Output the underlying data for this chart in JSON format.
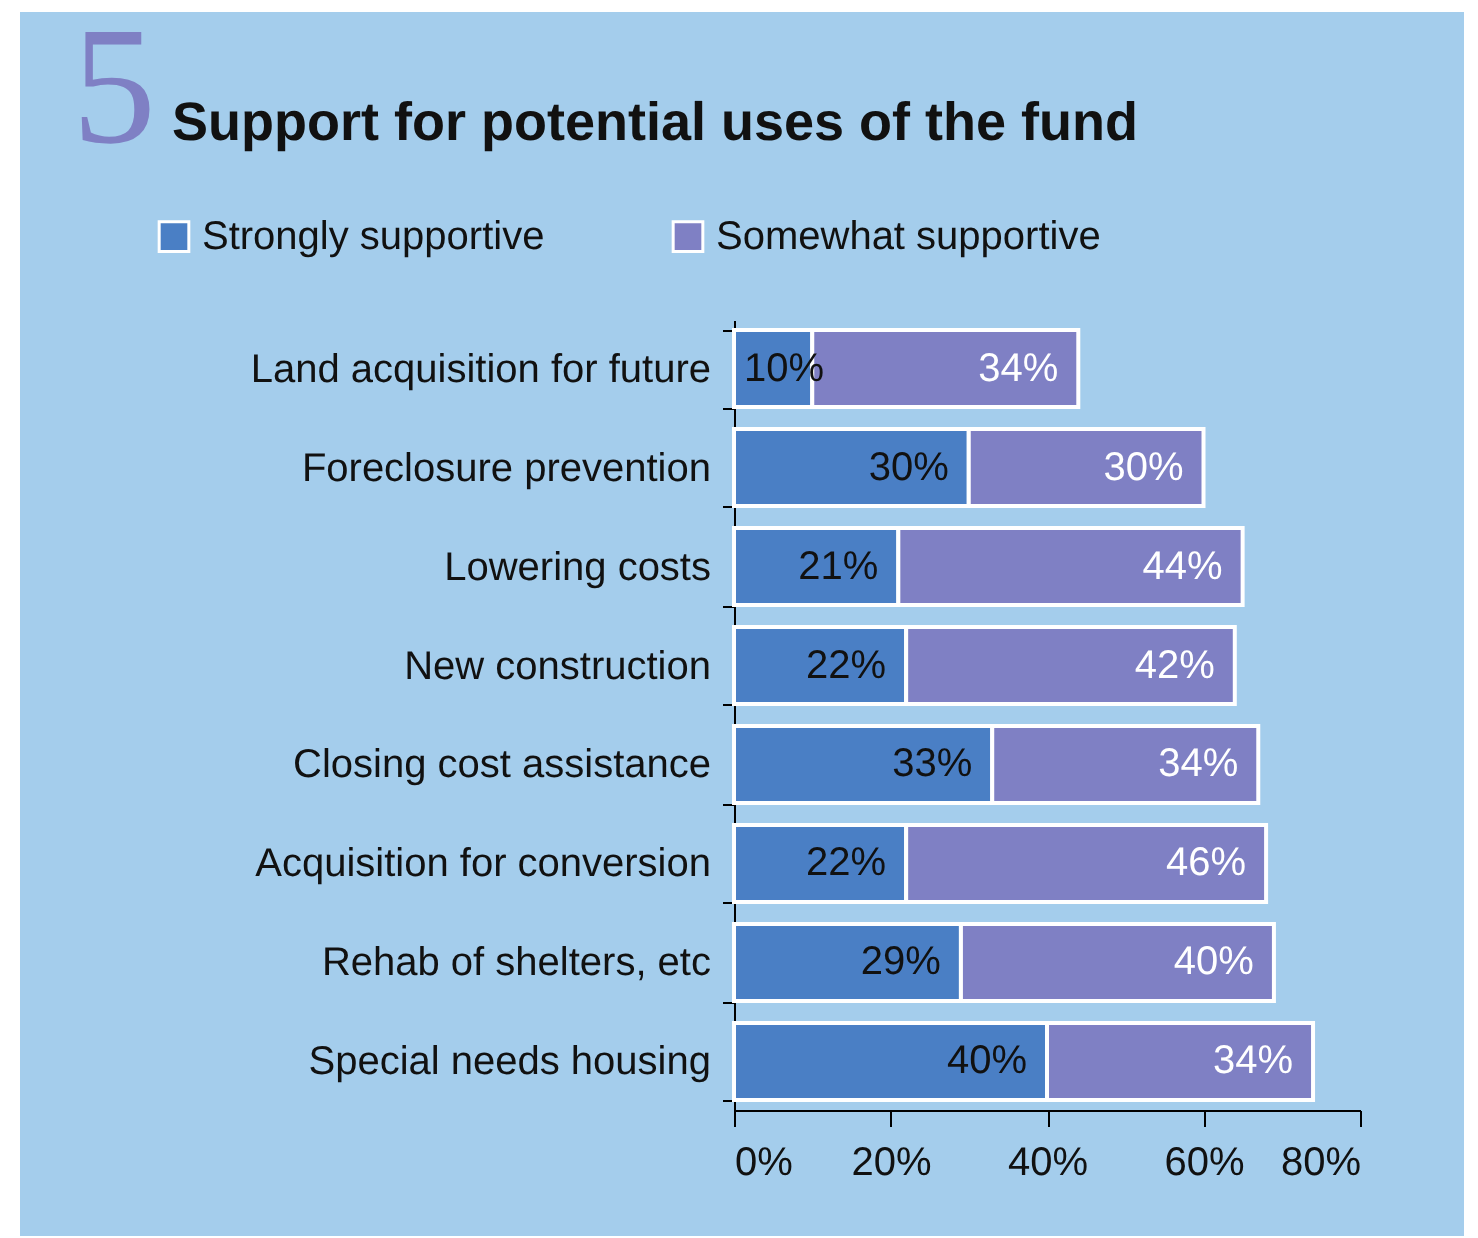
{
  "chart_data": {
    "type": "bar",
    "title": "Support for potential uses of the fund",
    "annotations": [
      "5"
    ],
    "orientation": "horizontal",
    "stacked": true,
    "legend": "top left",
    "grid": false,
    "categories": [
      "Land acquisition for future",
      "Foreclosure prevention",
      "Lowering costs",
      "New construction",
      "Closing cost assistance",
      "Acquisition for conversion",
      "Rehab of shelters, etc",
      "Special needs housing"
    ],
    "series": [
      {
        "name": "Strongly supportive",
        "color": "#4a7fc5",
        "values": [
          10,
          30,
          21,
          22,
          33,
          22,
          29,
          40
        ],
        "value_labels": [
          "10%",
          "30%",
          "21%",
          "22%",
          "33%",
          "22%",
          "29%",
          "40%"
        ]
      },
      {
        "name": "Somewhat supportive",
        "color": "#7f80c4",
        "values": [
          34,
          30,
          44,
          42,
          34,
          46,
          40,
          34
        ],
        "value_labels": [
          "34%",
          "30%",
          "44%",
          "42%",
          "34%",
          "46%",
          "40%",
          "34%"
        ]
      }
    ],
    "xlim": [
      0,
      80
    ],
    "xticks": [
      {
        "value": 0,
        "label": "0%"
      },
      {
        "value": 20,
        "label": "20%"
      },
      {
        "value": 40,
        "label": "40%"
      },
      {
        "value": 60,
        "label": "60%"
      },
      {
        "value": 80,
        "label": "80%"
      }
    ]
  }
}
